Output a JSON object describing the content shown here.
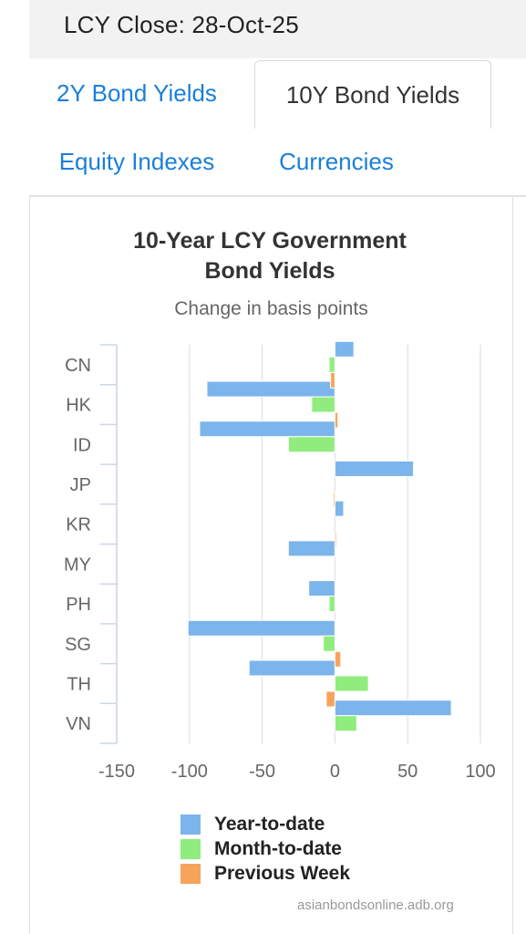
{
  "header": {
    "title": "LCY Close: 28-Oct-25"
  },
  "tabs": [
    {
      "label": "2Y Bond Yields",
      "active": false
    },
    {
      "label": "10Y Bond Yields",
      "active": true
    },
    {
      "label": "Equity Indexes",
      "active": false
    },
    {
      "label": "Currencies",
      "active": false
    }
  ],
  "credits": "asianbondsonline.adb.org",
  "chart_data": {
    "type": "bar",
    "orientation": "horizontal",
    "title": "10-Year LCY Government Bond Yields",
    "subtitle": "Change in basis points",
    "categories": [
      "CN",
      "HK",
      "ID",
      "JP",
      "KR",
      "MY",
      "PH",
      "SG",
      "TH",
      "VN"
    ],
    "series": [
      {
        "name": "Year-to-date",
        "color": "#7cb5ec",
        "values": [
          13,
          -88,
          -93,
          54,
          6,
          -32,
          -18,
          -101,
          -59,
          80
        ]
      },
      {
        "name": "Month-to-date",
        "color": "#90ed7d",
        "values": [
          -4,
          -16,
          -32,
          0,
          0,
          0,
          -4,
          -8,
          23,
          15
        ]
      },
      {
        "name": "Previous Week",
        "color": "#f7a35c",
        "values": [
          -3,
          2,
          0,
          -1,
          1,
          0,
          0,
          4,
          -6,
          0
        ]
      }
    ],
    "xlim": [
      -150,
      100
    ],
    "xticks": [
      -150,
      -100,
      -50,
      0,
      50,
      100
    ],
    "grid": true,
    "legend_position": "bottom"
  }
}
